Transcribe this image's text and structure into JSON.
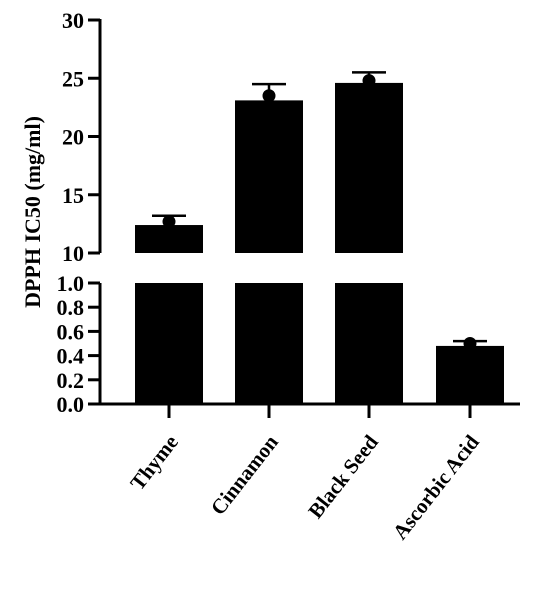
{
  "chart_data": {
    "type": "bar",
    "title": "",
    "xlabel": "",
    "ylabel": "DPPH IC50 (mg/ml)",
    "categories": [
      "Thyme",
      "Cinnamon",
      "Black Seed",
      "Ascorbic Acid"
    ],
    "series": [
      {
        "values": [
          12.4,
          23.1,
          24.6,
          0.48
        ],
        "points": [
          12.7,
          23.5,
          24.8,
          0.5
        ],
        "error_upper": [
          13.2,
          24.5,
          25.5,
          0.52
        ],
        "color": "#000000"
      }
    ],
    "y_axis_segments": [
      {
        "ylim": [
          0,
          1.0
        ],
        "ticks": [
          0.0,
          0.2,
          0.4,
          0.6,
          0.8,
          1.0
        ],
        "tick_labels": [
          "0.0",
          "0.2",
          "0.4",
          "0.6",
          "0.8",
          "1.0"
        ]
      },
      {
        "ylim": [
          10,
          30
        ],
        "ticks": [
          10,
          15,
          20,
          25,
          30
        ],
        "tick_labels": [
          "10",
          "15",
          "20",
          "25",
          "30"
        ]
      }
    ],
    "axis_break": true,
    "grid": false,
    "legend": "none"
  }
}
